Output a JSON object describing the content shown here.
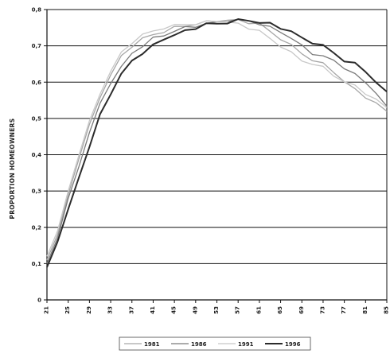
{
  "chart_data": {
    "type": "line",
    "title": "",
    "xlabel": "",
    "ylabel": "PROPORTION HOMEOWNERS",
    "ylim": [
      0,
      0.8
    ],
    "y_ticks": [
      "0",
      "0,1",
      "0,2",
      "0,3",
      "0,4",
      "0,5",
      "0,6",
      "0,7",
      "0,8"
    ],
    "x_ticks": [
      "21",
      "25",
      "29",
      "33",
      "37",
      "41",
      "45",
      "49",
      "53",
      "57",
      "61",
      "65",
      "69",
      "73",
      "77",
      "81",
      "85"
    ],
    "xlim": [
      21,
      85
    ],
    "grid": true,
    "legend": "bottom",
    "x": [
      21,
      23,
      25,
      27,
      29,
      31,
      33,
      35,
      37,
      39,
      41,
      43,
      45,
      47,
      49,
      51,
      53,
      55,
      57,
      59,
      61,
      63,
      65,
      67,
      69,
      71,
      73,
      75,
      77,
      79,
      81,
      83,
      85
    ],
    "series": [
      {
        "name": "1981",
        "color": "#a6a6a6",
        "width": 1.3,
        "values": [
          0.11,
          0.18,
          0.29,
          0.39,
          0.48,
          0.56,
          0.62,
          0.67,
          0.7,
          0.72,
          0.73,
          0.74,
          0.75,
          0.755,
          0.76,
          0.765,
          0.77,
          0.77,
          0.77,
          0.765,
          0.76,
          0.74,
          0.72,
          0.7,
          0.68,
          0.66,
          0.65,
          0.63,
          0.6,
          0.58,
          0.56,
          0.54,
          0.52
        ]
      },
      {
        "name": "1986",
        "color": "#7a7a7a",
        "width": 1.3,
        "values": [
          0.1,
          0.17,
          0.28,
          0.37,
          0.46,
          0.54,
          0.6,
          0.64,
          0.68,
          0.7,
          0.72,
          0.73,
          0.74,
          0.75,
          0.755,
          0.76,
          0.765,
          0.77,
          0.77,
          0.77,
          0.76,
          0.75,
          0.74,
          0.72,
          0.7,
          0.68,
          0.67,
          0.66,
          0.64,
          0.62,
          0.6,
          0.57,
          0.53
        ]
      },
      {
        "name": "1991",
        "color": "#c8c8c8",
        "width": 1.3,
        "values": [
          0.12,
          0.19,
          0.3,
          0.4,
          0.49,
          0.57,
          0.63,
          0.68,
          0.71,
          0.73,
          0.74,
          0.75,
          0.755,
          0.76,
          0.76,
          0.765,
          0.77,
          0.765,
          0.76,
          0.75,
          0.74,
          0.72,
          0.7,
          0.68,
          0.66,
          0.65,
          0.64,
          0.62,
          0.6,
          0.59,
          0.57,
          0.55,
          0.53
        ]
      },
      {
        "name": "1996",
        "color": "#2b2b2b",
        "width": 2.0,
        "values": [
          0.09,
          0.16,
          0.25,
          0.34,
          0.42,
          0.51,
          0.57,
          0.62,
          0.66,
          0.68,
          0.7,
          0.72,
          0.73,
          0.74,
          0.75,
          0.76,
          0.76,
          0.765,
          0.77,
          0.77,
          0.765,
          0.76,
          0.75,
          0.74,
          0.72,
          0.71,
          0.7,
          0.68,
          0.66,
          0.65,
          0.63,
          0.6,
          0.57
        ]
      }
    ]
  }
}
